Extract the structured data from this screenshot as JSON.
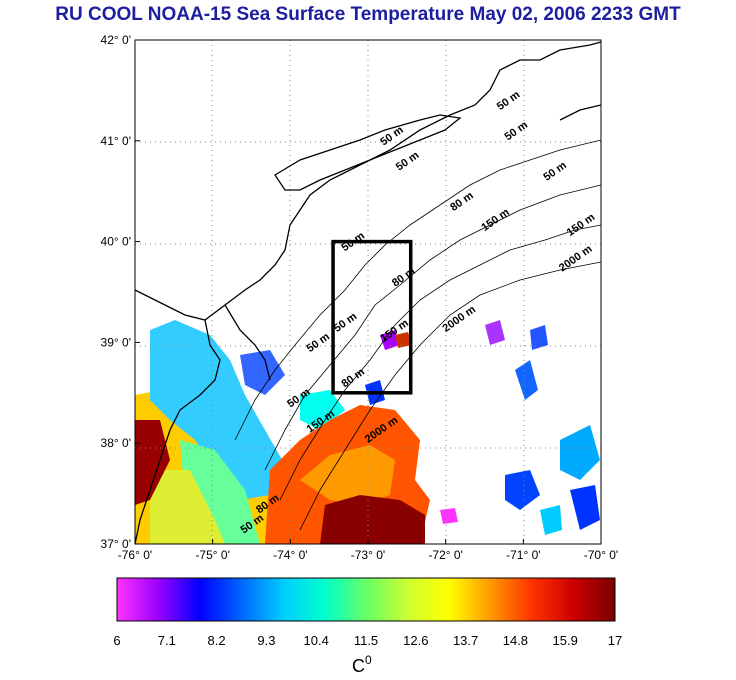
{
  "title": "RU COOL  NOAA-15 Sea Surface Temperature May 02, 2006 2233 GMT",
  "map": {
    "lon_range": [
      -76,
      -70
    ],
    "lat_range": [
      37,
      42
    ],
    "lon_ticks": [
      "-76° 0'",
      "-75° 0'",
      "-74° 0'",
      "-73° 0'",
      "-72° 0'",
      "-71° 0'",
      "-70° 0'"
    ],
    "lat_ticks": [
      "42° 0'",
      "41° 0'",
      "40° 0'",
      "39° 0'",
      "38° 0'",
      "37° 0'"
    ],
    "grid": true,
    "study_box": {
      "lon_min": -73.45,
      "lon_max": -72.45,
      "lat_min": 38.5,
      "lat_max": 40.0
    },
    "contour_labels": [
      {
        "text": "50 m",
        "lon": -72.8,
        "lat": 40.95
      },
      {
        "text": "50 m",
        "lon": -71.3,
        "lat": 41.3
      },
      {
        "text": "50 m",
        "lon": -71.2,
        "lat": 41.0
      },
      {
        "text": "50 m",
        "lon": -72.6,
        "lat": 40.7
      },
      {
        "text": "50 m",
        "lon": -70.7,
        "lat": 40.6
      },
      {
        "text": "80 m",
        "lon": -71.9,
        "lat": 40.3
      },
      {
        "text": "150 m",
        "lon": -71.5,
        "lat": 40.1
      },
      {
        "text": "150 m",
        "lon": -70.4,
        "lat": 40.05
      },
      {
        "text": "2000 m",
        "lon": -70.5,
        "lat": 39.7
      },
      {
        "text": "50 m",
        "lon": -73.3,
        "lat": 39.9
      },
      {
        "text": "80 m",
        "lon": -72.65,
        "lat": 39.55
      },
      {
        "text": "50 m",
        "lon": -73.4,
        "lat": 39.1
      },
      {
        "text": "150 m",
        "lon": -72.8,
        "lat": 39.0
      },
      {
        "text": "2000 m",
        "lon": -72.0,
        "lat": 39.1
      },
      {
        "text": "50 m",
        "lon": -73.75,
        "lat": 38.9
      },
      {
        "text": "80 m",
        "lon": -73.3,
        "lat": 38.55
      },
      {
        "text": "50 m",
        "lon": -74.0,
        "lat": 38.35
      },
      {
        "text": "150 m",
        "lon": -73.75,
        "lat": 38.1
      },
      {
        "text": "2000 m",
        "lon": -73.0,
        "lat": 38.0
      },
      {
        "text": "80 m",
        "lon": -74.4,
        "lat": 37.3
      },
      {
        "text": "50 m",
        "lon": -74.6,
        "lat": 37.1
      }
    ]
  },
  "colorbar": {
    "min": 6,
    "max": 17,
    "labels": [
      "6",
      "7.1",
      "8.2",
      "9.3",
      "10.4",
      "11.5",
      "12.6",
      "13.7",
      "14.8",
      "15.9",
      "17"
    ],
    "unit": "C",
    "unit_superscript": "0",
    "colors": [
      "#ff33ff",
      "#9900ff",
      "#0000ff",
      "#0066ff",
      "#00ccff",
      "#00ffcc",
      "#66ff66",
      "#ccff33",
      "#ffff00",
      "#ff9900",
      "#ff3300",
      "#cc0000",
      "#7a0000"
    ]
  },
  "colors": {
    "title": "#1e1ea0",
    "land": "#ffffff",
    "coast": "#000000",
    "box": "#000000"
  }
}
